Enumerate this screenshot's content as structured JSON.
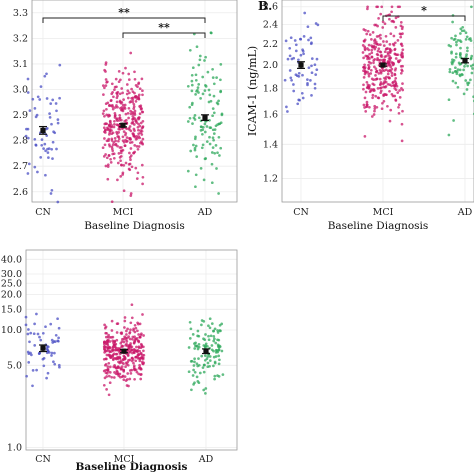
{
  "chart_data": [
    {
      "type": "scatter",
      "panel_label": "",
      "xlabel": "Baseline Diagnosis",
      "ylabel": "",
      "categories": [
        "CN",
        "MCI",
        "AD"
      ],
      "yticks": [
        "2.6",
        "2.7",
        "2.8",
        "2.9",
        "3.0",
        "3.1",
        "3.2",
        "3.3"
      ],
      "ytick_values": [
        2.6,
        2.7,
        2.8,
        2.9,
        3.0,
        3.1,
        3.2,
        3.3
      ],
      "ylim": [
        2.56,
        3.35
      ],
      "scale": "linear",
      "colors": [
        "#4b4fc4",
        "#c9186a",
        "#2ea85b"
      ],
      "point_counts": [
        60,
        350,
        120
      ],
      "means": [
        2.84,
        2.86,
        2.89
      ],
      "sems": [
        0.015,
        0.006,
        0.011
      ],
      "spreads": [
        0.11,
        0.1,
        0.12
      ],
      "significance": [
        {
          "from": "CN",
          "to": "AD",
          "label": "**"
        },
        {
          "from": "MCI",
          "to": "AD",
          "label": "**"
        }
      ]
    },
    {
      "type": "scatter",
      "panel_label": "B.",
      "xlabel": "Baseline Diagnosis",
      "ylabel": "ICAM-1 (ng/mL)",
      "categories": [
        "CN",
        "MCI",
        "AD"
      ],
      "yticks": [
        "1.2",
        "1.4",
        "1.6",
        "1.8",
        "2.0",
        "2.2",
        "2.4",
        "2.6"
      ],
      "ytick_values": [
        1.2,
        1.4,
        1.6,
        1.8,
        2.0,
        2.2,
        2.4,
        2.6
      ],
      "ylim": [
        1.08,
        2.68
      ],
      "scale": "log",
      "colors": [
        "#4b4fc4",
        "#c9186a",
        "#2ea85b"
      ],
      "point_counts": [
        60,
        350,
        120
      ],
      "means": [
        2.0,
        2.0,
        2.04
      ],
      "sems": [
        0.03,
        0.01,
        0.02
      ],
      "spreads": [
        0.1,
        0.11,
        0.1
      ],
      "significance": [
        {
          "from": "MCI",
          "to": "AD",
          "label": "*"
        }
      ]
    },
    {
      "type": "scatter",
      "panel_label": "",
      "xlabel": "Baseline Diagnosis",
      "ylabel": "",
      "categories": [
        "CN",
        "MCI",
        "AD"
      ],
      "yticks": [
        "1.0",
        "5.0",
        "10.0",
        "15.0",
        "20.0",
        "25.0",
        "30.0",
        "40.0"
      ],
      "ytick_values": [
        1,
        5,
        10,
        15,
        20,
        25,
        30,
        40
      ],
      "ylim": [
        0.95,
        48
      ],
      "scale": "log",
      "colors": [
        "#4b4fc4",
        "#c9186a",
        "#2ea85b"
      ],
      "point_counts": [
        60,
        350,
        120
      ],
      "means": [
        7.0,
        6.6,
        6.6
      ],
      "sems": [
        0.45,
        0.2,
        0.3
      ],
      "spreads": [
        0.3,
        0.32,
        0.32
      ],
      "significance": []
    }
  ]
}
